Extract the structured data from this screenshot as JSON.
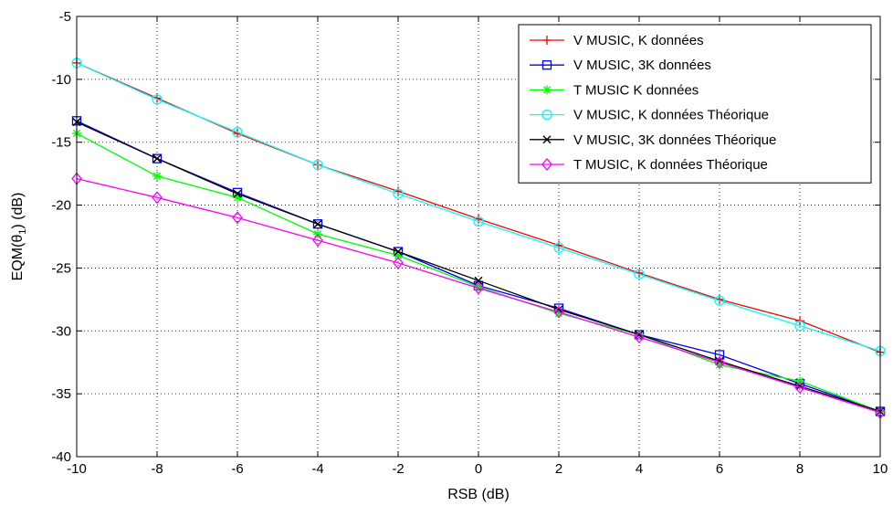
{
  "chart_data": {
    "type": "line",
    "title": "",
    "xlabel": "RSB (dB)",
    "ylabel_main": "EQM(θ",
    "ylabel_sub": "1",
    "ylabel_tail": ") (dB)",
    "xlim": [
      -10,
      10
    ],
    "ylim": [
      -40,
      -5
    ],
    "xticks": [
      -10,
      -8,
      -6,
      -4,
      -2,
      0,
      2,
      4,
      6,
      8,
      10
    ],
    "yticks": [
      -5,
      -10,
      -15,
      -20,
      -25,
      -30,
      -35,
      -40
    ],
    "grid": true,
    "legend_position": "top-right",
    "x": [
      -10,
      -8,
      -6,
      -4,
      -2,
      0,
      2,
      4,
      6,
      8,
      10
    ],
    "series": [
      {
        "name": "V MUSIC, K données",
        "color": "#ff0000",
        "marker": "plus",
        "values": [
          -8.7,
          -11.5,
          -14.3,
          -16.8,
          -18.9,
          -21.1,
          -23.2,
          -25.4,
          -27.5,
          -29.2,
          -31.7
        ]
      },
      {
        "name": "V MUSIC, 3K données",
        "color": "#0000ff",
        "marker": "square",
        "values": [
          -13.3,
          -16.3,
          -19.0,
          -21.5,
          -23.7,
          -26.4,
          -28.2,
          -30.3,
          -31.9,
          -34.2,
          -36.4
        ]
      },
      {
        "name": "T MUSIC K données",
        "color": "#00ff00",
        "marker": "asterisk",
        "values": [
          -14.3,
          -17.7,
          -19.4,
          -22.3,
          -24.0,
          -26.5,
          -28.6,
          -30.3,
          -32.7,
          -34.0,
          -36.4
        ]
      },
      {
        "name": "V MUSIC, K données Théorique",
        "color": "#00ffff",
        "marker": "circle",
        "values": [
          -8.7,
          -11.6,
          -14.2,
          -16.8,
          -19.1,
          -21.3,
          -23.4,
          -25.5,
          -27.6,
          -29.6,
          -31.6
        ]
      },
      {
        "name": "V MUSIC, 3K données Théorique",
        "color": "#000000",
        "marker": "x",
        "values": [
          -13.4,
          -16.3,
          -19.1,
          -21.5,
          -23.7,
          -26.0,
          -28.3,
          -30.3,
          -32.4,
          -34.4,
          -36.4
        ]
      },
      {
        "name": "T MUSIC, K données Théorique",
        "color": "#ff00ff",
        "marker": "diamond",
        "values": [
          -17.9,
          -19.4,
          -21.0,
          -22.8,
          -24.6,
          -26.6,
          -28.5,
          -30.5,
          -32.5,
          -34.5,
          -36.5
        ]
      }
    ]
  }
}
